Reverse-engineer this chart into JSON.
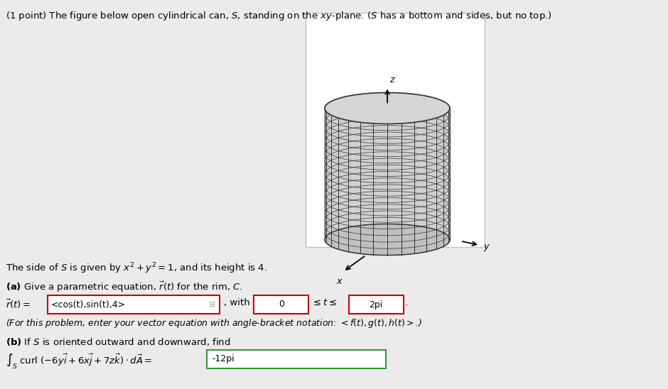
{
  "bg_color": "#ebebeb",
  "white_bg": "#ffffff",
  "text_color": "#000000",
  "answer_box_color_a": "#cc0000",
  "answer_box_color_b": "#339933",
  "grid_color": "#333333",
  "cyl_face_light": "#d0d0d0",
  "cyl_face_dark": "#b0b0b0",
  "cyl_bottom": "#c0c0c0",
  "cyl_top_fill": "#c8c8c8",
  "n_vert": 14,
  "n_horiz": 20,
  "part_a_answer": "<cos(t),sin(t),4>",
  "part_a_lower": "0",
  "part_a_upper": "2pi",
  "part_b_answer": "-12pi"
}
